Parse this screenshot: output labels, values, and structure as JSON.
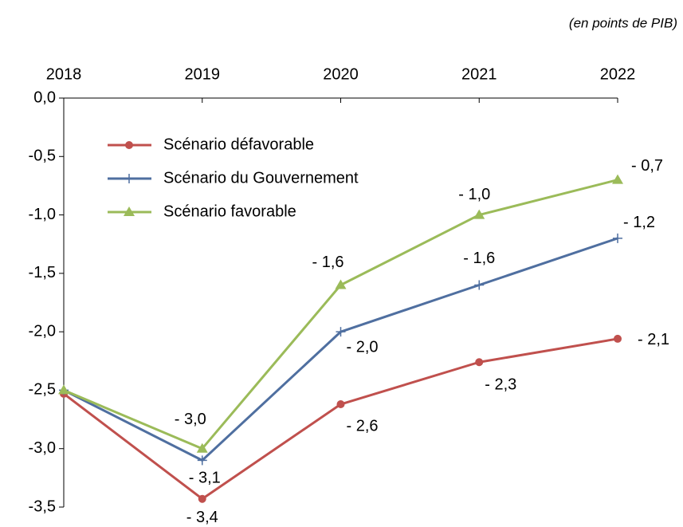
{
  "chart_data": {
    "type": "line",
    "annotation": "(en points de PIB)",
    "categories": [
      "2018",
      "2019",
      "2020",
      "2021",
      "2022"
    ],
    "series": [
      {
        "name": "Scénario défavorable",
        "color": "#c0504d",
        "marker": "circle",
        "values": [
          -2.53,
          -3.43,
          -2.62,
          -2.26,
          -2.06
        ],
        "value_labels": [
          null,
          "- 3,4",
          "- 2,6",
          "- 2,3",
          "- 2,1"
        ]
      },
      {
        "name": "Scénario du Gouvernement",
        "color": "#4f6fa0",
        "marker": "plus",
        "values": [
          -2.5,
          -3.1,
          -2.0,
          -1.6,
          -1.2
        ],
        "value_labels": [
          null,
          "- 3,1",
          "- 2,0",
          "- 1,6",
          "- 1,2"
        ]
      },
      {
        "name": "Scénario favorable",
        "color": "#9bbb59",
        "marker": "triangle",
        "values": [
          -2.5,
          -3.0,
          -1.6,
          -1.0,
          -0.7
        ],
        "value_labels": [
          null,
          "- 3,0",
          "- 1,6",
          "- 1,0",
          "- 0,7"
        ]
      }
    ],
    "ylim": [
      -3.5,
      0
    ],
    "yticks": [
      {
        "value": 0,
        "label": "0,0"
      },
      {
        "value": -0.5,
        "label": "-0,5"
      },
      {
        "value": -1,
        "label": "-1,0"
      },
      {
        "value": -1.5,
        "label": "-1,5"
      },
      {
        "value": -2,
        "label": "-2,0"
      },
      {
        "value": -2.5,
        "label": "-2,5"
      },
      {
        "value": -3,
        "label": "-3,0"
      },
      {
        "value": -3.5,
        "label": "-3,5"
      }
    ],
    "grid": false
  }
}
